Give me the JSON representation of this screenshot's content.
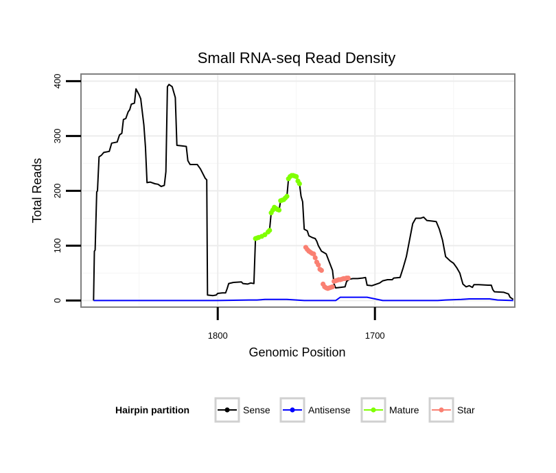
{
  "chart_data": {
    "type": "line",
    "title": "Small RNA-seq Read Density",
    "xlabel": "Genomic Position",
    "ylabel": "Total Reads",
    "x_reversed": true,
    "xlim": [
      1887,
      1611
    ],
    "ylim": [
      -12,
      413
    ],
    "x_ticks": [
      1800,
      1700
    ],
    "y_ticks": [
      0,
      100,
      200,
      300,
      400
    ],
    "grid": true,
    "legend": {
      "title": "Hairpin partition",
      "placement": "bottom",
      "entries": [
        "Sense",
        "Antisense",
        "Mature",
        "Star"
      ]
    },
    "colors": {
      "Sense": "#000000",
      "Antisense": "#0000ff",
      "Mature": "#7fff00",
      "Star": "#fa8072"
    },
    "series": [
      {
        "name": "Sense",
        "style": "line",
        "points": [
          [
            1879,
            0
          ],
          [
            1878.5,
            90
          ],
          [
            1878,
            92
          ],
          [
            1877,
            198
          ],
          [
            1876.5,
            200
          ],
          [
            1875.5,
            262
          ],
          [
            1874,
            265
          ],
          [
            1872.5,
            270
          ],
          [
            1869,
            272
          ],
          [
            1867.5,
            287
          ],
          [
            1864,
            289
          ],
          [
            1862.5,
            302
          ],
          [
            1861,
            305
          ],
          [
            1860,
            330
          ],
          [
            1858.5,
            332
          ],
          [
            1857,
            344
          ],
          [
            1856,
            348
          ],
          [
            1855,
            358
          ],
          [
            1853,
            360
          ],
          [
            1852,
            386
          ],
          [
            1850,
            375
          ],
          [
            1849,
            368
          ],
          [
            1847,
            320
          ],
          [
            1846,
            280
          ],
          [
            1845,
            215
          ],
          [
            1843,
            216
          ],
          [
            1840,
            213
          ],
          [
            1838,
            212
          ],
          [
            1836,
            208
          ],
          [
            1834,
            210
          ],
          [
            1833,
            235
          ],
          [
            1832,
            390
          ],
          [
            1831,
            394
          ],
          [
            1829,
            390
          ],
          [
            1827,
            370
          ],
          [
            1826,
            283
          ],
          [
            1823,
            282
          ],
          [
            1820,
            281
          ],
          [
            1819,
            255
          ],
          [
            1818,
            250
          ],
          [
            1817.5,
            248
          ],
          [
            1813,
            248
          ],
          [
            1811,
            240
          ],
          [
            1808,
            223
          ],
          [
            1807,
            220
          ],
          [
            1806.5,
            10
          ],
          [
            1803,
            9
          ],
          [
            1801,
            10
          ],
          [
            1800,
            13
          ],
          [
            1797,
            14
          ],
          [
            1795,
            14
          ],
          [
            1794,
            22
          ],
          [
            1793,
            31
          ],
          [
            1790,
            33
          ],
          [
            1785,
            34
          ],
          [
            1784,
            31
          ],
          [
            1781,
            30
          ],
          [
            1779,
            32
          ],
          [
            1777,
            31
          ],
          [
            1776,
            113
          ],
          [
            1774,
            115
          ],
          [
            1770,
            120
          ],
          [
            1767,
            130
          ],
          [
            1766,
            160
          ],
          [
            1765,
            165
          ],
          [
            1764,
            170
          ],
          [
            1763,
            169
          ],
          [
            1761,
            164
          ],
          [
            1760,
            182
          ],
          [
            1758,
            184
          ],
          [
            1756,
            190
          ],
          [
            1755,
            222
          ],
          [
            1754,
            228
          ],
          [
            1750,
            228
          ],
          [
            1749,
            218
          ],
          [
            1748,
            213
          ],
          [
            1747,
            190
          ],
          [
            1746,
            180
          ],
          [
            1745,
            130
          ],
          [
            1743,
            127
          ],
          [
            1742,
            118
          ],
          [
            1740,
            115
          ],
          [
            1738,
            113
          ],
          [
            1737,
            108
          ],
          [
            1736,
            100
          ],
          [
            1734,
            90
          ],
          [
            1731,
            85
          ],
          [
            1729,
            70
          ],
          [
            1727,
            55
          ],
          [
            1726,
            30
          ],
          [
            1725,
            23
          ],
          [
            1722,
            24
          ],
          [
            1719,
            25
          ],
          [
            1718,
            35
          ],
          [
            1716,
            39
          ],
          [
            1714,
            40
          ],
          [
            1711,
            40
          ],
          [
            1708,
            41
          ],
          [
            1706,
            42
          ],
          [
            1705,
            28
          ],
          [
            1702,
            27
          ],
          [
            1699,
            30
          ],
          [
            1697,
            32
          ],
          [
            1695,
            36
          ],
          [
            1692,
            38
          ],
          [
            1689,
            38
          ],
          [
            1688,
            41
          ],
          [
            1684,
            42
          ],
          [
            1682,
            60
          ],
          [
            1680,
            80
          ],
          [
            1678,
            110
          ],
          [
            1676,
            140
          ],
          [
            1674,
            150
          ],
          [
            1671,
            150
          ],
          [
            1669,
            152
          ],
          [
            1667,
            146
          ],
          [
            1664,
            145
          ],
          [
            1661,
            144
          ],
          [
            1659,
            130
          ],
          [
            1657,
            110
          ],
          [
            1655,
            80
          ],
          [
            1652,
            72
          ],
          [
            1650,
            68
          ],
          [
            1648,
            60
          ],
          [
            1646,
            50
          ],
          [
            1645,
            40
          ],
          [
            1644,
            30
          ],
          [
            1642,
            25
          ],
          [
            1640,
            27
          ],
          [
            1638,
            24
          ],
          [
            1637,
            29
          ],
          [
            1634,
            29
          ],
          [
            1628,
            28
          ],
          [
            1626,
            28
          ],
          [
            1625,
            20
          ],
          [
            1624,
            16
          ],
          [
            1618,
            15
          ],
          [
            1615,
            12
          ],
          [
            1614,
            6
          ],
          [
            1613,
            4
          ],
          [
            1612,
            2
          ]
        ]
      },
      {
        "name": "Antisense",
        "style": "line",
        "points": [
          [
            1879,
            0
          ],
          [
            1800,
            0
          ],
          [
            1780,
            1
          ],
          [
            1775,
            1
          ],
          [
            1770,
            2
          ],
          [
            1756,
            2
          ],
          [
            1750,
            1
          ],
          [
            1745,
            0
          ],
          [
            1725,
            0
          ],
          [
            1722,
            6
          ],
          [
            1705,
            6
          ],
          [
            1700,
            3
          ],
          [
            1695,
            0
          ],
          [
            1660,
            0
          ],
          [
            1655,
            1
          ],
          [
            1645,
            2
          ],
          [
            1640,
            3
          ],
          [
            1627,
            3
          ],
          [
            1622,
            1
          ],
          [
            1612,
            0
          ]
        ]
      },
      {
        "name": "Mature",
        "style": "points",
        "points": [
          [
            1776,
            113
          ],
          [
            1775,
            114
          ],
          [
            1774,
            115
          ],
          [
            1772,
            117
          ],
          [
            1770,
            120
          ],
          [
            1768,
            125
          ],
          [
            1767,
            128
          ],
          [
            1766,
            160
          ],
          [
            1765,
            165
          ],
          [
            1764,
            170
          ],
          [
            1763,
            168
          ],
          [
            1762,
            166
          ],
          [
            1761,
            165
          ],
          [
            1760,
            182
          ],
          [
            1759,
            183
          ],
          [
            1758,
            184
          ],
          [
            1757,
            187
          ],
          [
            1756,
            190
          ],
          [
            1755,
            222
          ],
          [
            1754,
            226
          ],
          [
            1753,
            228
          ],
          [
            1752,
            228
          ],
          [
            1751,
            227
          ],
          [
            1750,
            226
          ],
          [
            1749,
            218
          ],
          [
            1748,
            213
          ]
        ]
      },
      {
        "name": "Star",
        "style": "points",
        "points": [
          [
            1744,
            97
          ],
          [
            1743,
            93
          ],
          [
            1742,
            90
          ],
          [
            1741,
            88
          ],
          [
            1740,
            86
          ],
          [
            1739,
            85
          ],
          [
            1738,
            78
          ],
          [
            1737,
            70
          ],
          [
            1736,
            65
          ],
          [
            1735,
            57
          ],
          [
            1734,
            55
          ],
          [
            1733,
            30
          ],
          [
            1732,
            25
          ],
          [
            1731,
            23
          ],
          [
            1730,
            22
          ],
          [
            1729,
            23
          ],
          [
            1728,
            24
          ],
          [
            1727,
            25
          ],
          [
            1726,
            35
          ],
          [
            1725,
            36
          ],
          [
            1724,
            37
          ],
          [
            1723,
            38
          ],
          [
            1722,
            38
          ],
          [
            1721,
            39
          ],
          [
            1720,
            40
          ],
          [
            1719,
            40
          ],
          [
            1718,
            41
          ],
          [
            1717,
            41
          ]
        ]
      }
    ]
  }
}
